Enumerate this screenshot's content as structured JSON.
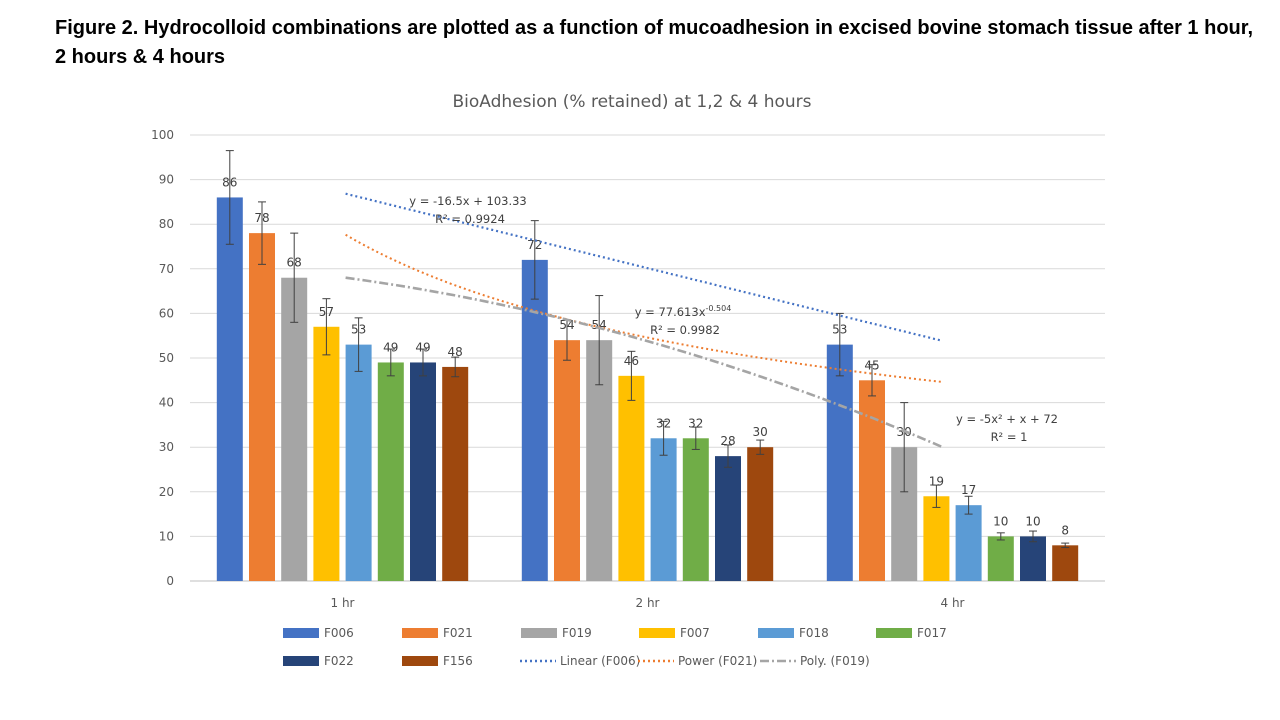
{
  "figure_caption": "Figure 2. Hydrocolloid combinations are plotted as a function of mucoadhesion in excised bovine stomach tissue after 1 hour, 2 hours & 4 hours",
  "chart_data": {
    "type": "bar",
    "title": "BioAdhesion (% retained) at 1,2 & 4 hours",
    "xlabel": "",
    "ylabel": "",
    "ylim": [
      0,
      100
    ],
    "yticks": [
      0,
      10,
      20,
      30,
      40,
      50,
      60,
      70,
      80,
      90,
      100
    ],
    "grid": true,
    "legend_position": "bottom",
    "categories": [
      "1 hr",
      "2 hr",
      "4 hr"
    ],
    "series": [
      {
        "name": "F006",
        "color": "#4472C4",
        "values": [
          86,
          72,
          53
        ],
        "error": [
          10.5,
          8.8,
          7.0
        ]
      },
      {
        "name": "F021",
        "color": "#ED7D31",
        "values": [
          78,
          54,
          45
        ],
        "error": [
          7.0,
          4.5,
          3.5
        ]
      },
      {
        "name": "F019",
        "color": "#A5A5A5",
        "values": [
          68,
          54,
          30
        ],
        "error": [
          10.0,
          10.0,
          10.0
        ]
      },
      {
        "name": "F007",
        "color": "#FFC000",
        "values": [
          57,
          46,
          19
        ],
        "error": [
          6.3,
          5.5,
          2.5
        ]
      },
      {
        "name": "F018",
        "color": "#5B9BD5",
        "values": [
          53,
          32,
          17
        ],
        "error": [
          6.0,
          3.8,
          2.0
        ]
      },
      {
        "name": "F017",
        "color": "#70AD47",
        "values": [
          49,
          32,
          10
        ],
        "error": [
          3.0,
          2.5,
          0.8
        ]
      },
      {
        "name": "F022",
        "color": "#264478",
        "values": [
          49,
          28,
          10
        ],
        "error": [
          3.0,
          2.5,
          1.2
        ]
      },
      {
        "name": "F156",
        "color": "#9E480E",
        "values": [
          48,
          30,
          8
        ],
        "error": [
          2.2,
          1.6,
          0.5
        ]
      }
    ],
    "trendlines": [
      {
        "name": "Linear (F006)",
        "series": "F006",
        "kind": "linear",
        "color": "#4472C4",
        "coeffs": {
          "a": -16.5,
          "b": 103.33
        },
        "equation": "y = -16.5x + 103.33",
        "r2": "R² = 0.9924"
      },
      {
        "name": "Power (F021)",
        "series": "F021",
        "kind": "power",
        "color": "#ED7D31",
        "coeffs": {
          "a": 77.613,
          "b": -0.504
        },
        "equation_base": "y = 77.613x",
        "equation_exp": "-0.504",
        "r2": "R² = 0.9982"
      },
      {
        "name": "Poly. (F019)",
        "series": "F019",
        "kind": "poly",
        "color": "#A5A5A5",
        "coeffs": {
          "a": -5,
          "b": 1,
          "c": 72
        },
        "equation": "y = -5x² + x + 72",
        "r2": "R² = 1"
      }
    ]
  }
}
